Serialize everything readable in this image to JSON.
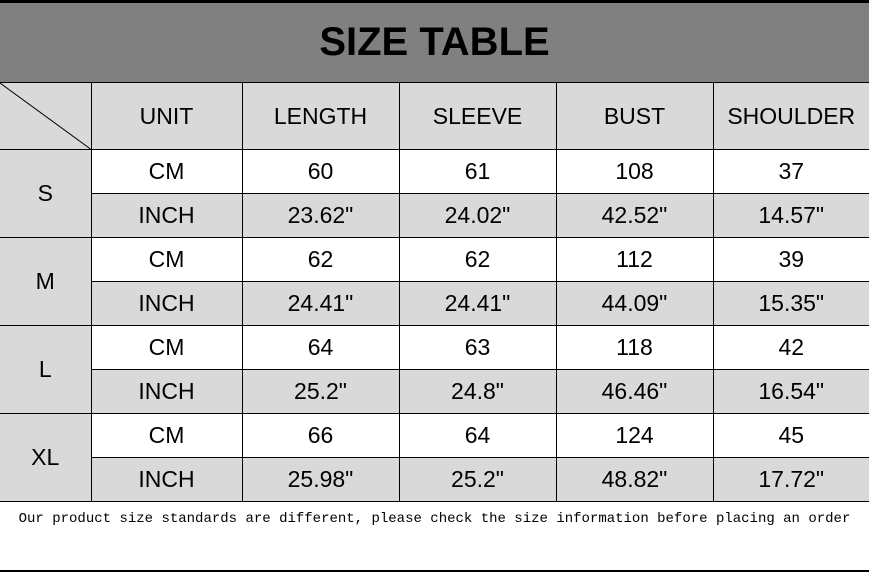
{
  "title": "SIZE TABLE",
  "headers": [
    "UNIT",
    "LENGTH",
    "SLEEVE",
    "BUST",
    "SHOULDER"
  ],
  "sizes": [
    {
      "size": "S",
      "rows": [
        [
          "CM",
          "60",
          "61",
          "108",
          "37"
        ],
        [
          "INCH",
          "23.62\"",
          "24.02\"",
          "42.52\"",
          "14.57\""
        ]
      ]
    },
    {
      "size": "M",
      "rows": [
        [
          "CM",
          "62",
          "62",
          "112",
          "39"
        ],
        [
          "INCH",
          "24.41\"",
          "24.41\"",
          "44.09\"",
          "15.35\""
        ]
      ]
    },
    {
      "size": "L",
      "rows": [
        [
          "CM",
          "64",
          "63",
          "118",
          "42"
        ],
        [
          "INCH",
          "25.2\"",
          "24.8\"",
          "46.46\"",
          "16.54\""
        ]
      ]
    },
    {
      "size": "XL",
      "rows": [
        [
          "CM",
          "66",
          "64",
          "124",
          "45"
        ],
        [
          "INCH",
          "25.98\"",
          "25.2\"",
          "48.82\"",
          "17.72\""
        ]
      ]
    }
  ],
  "note": "Our product size standards are different, please check the size information before placing an order",
  "colors": {
    "title_bg": "#808080",
    "cell_gray": "#d9d9d9"
  }
}
